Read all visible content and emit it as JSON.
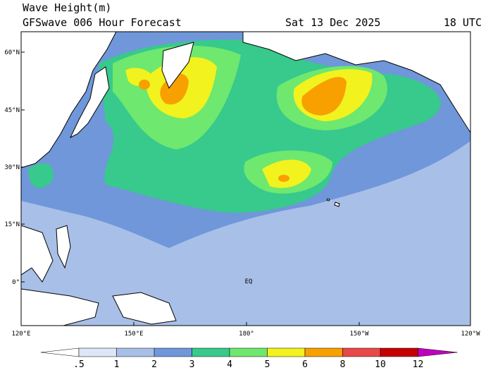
{
  "header": {
    "title": "Wave Height(m)",
    "subtitle": "GFSwave 006 Hour Forecast",
    "date": "Sat 13 Dec 2025",
    "time": "18 UTC"
  },
  "map": {
    "lat_labels": [
      "60°N",
      "45°N",
      "30°N",
      "15°N",
      "0°"
    ],
    "lon_labels": [
      "120°E",
      "150°E",
      "180°",
      "150°W",
      "120°W"
    ],
    "annotation": "EQ"
  },
  "colorbar": {
    "levels": [
      {
        "value": 0.5,
        "label": ".5"
      },
      1,
      2,
      3,
      4,
      5,
      6,
      8,
      10,
      12
    ],
    "colors": [
      "#ffffff",
      "#dce6f6",
      "#a8bfe8",
      "#6f97da",
      "#38c98c",
      "#6ee86e",
      "#f2f21e",
      "#f7a000",
      "#e84848",
      "#c40000",
      "#c000c0"
    ]
  }
}
